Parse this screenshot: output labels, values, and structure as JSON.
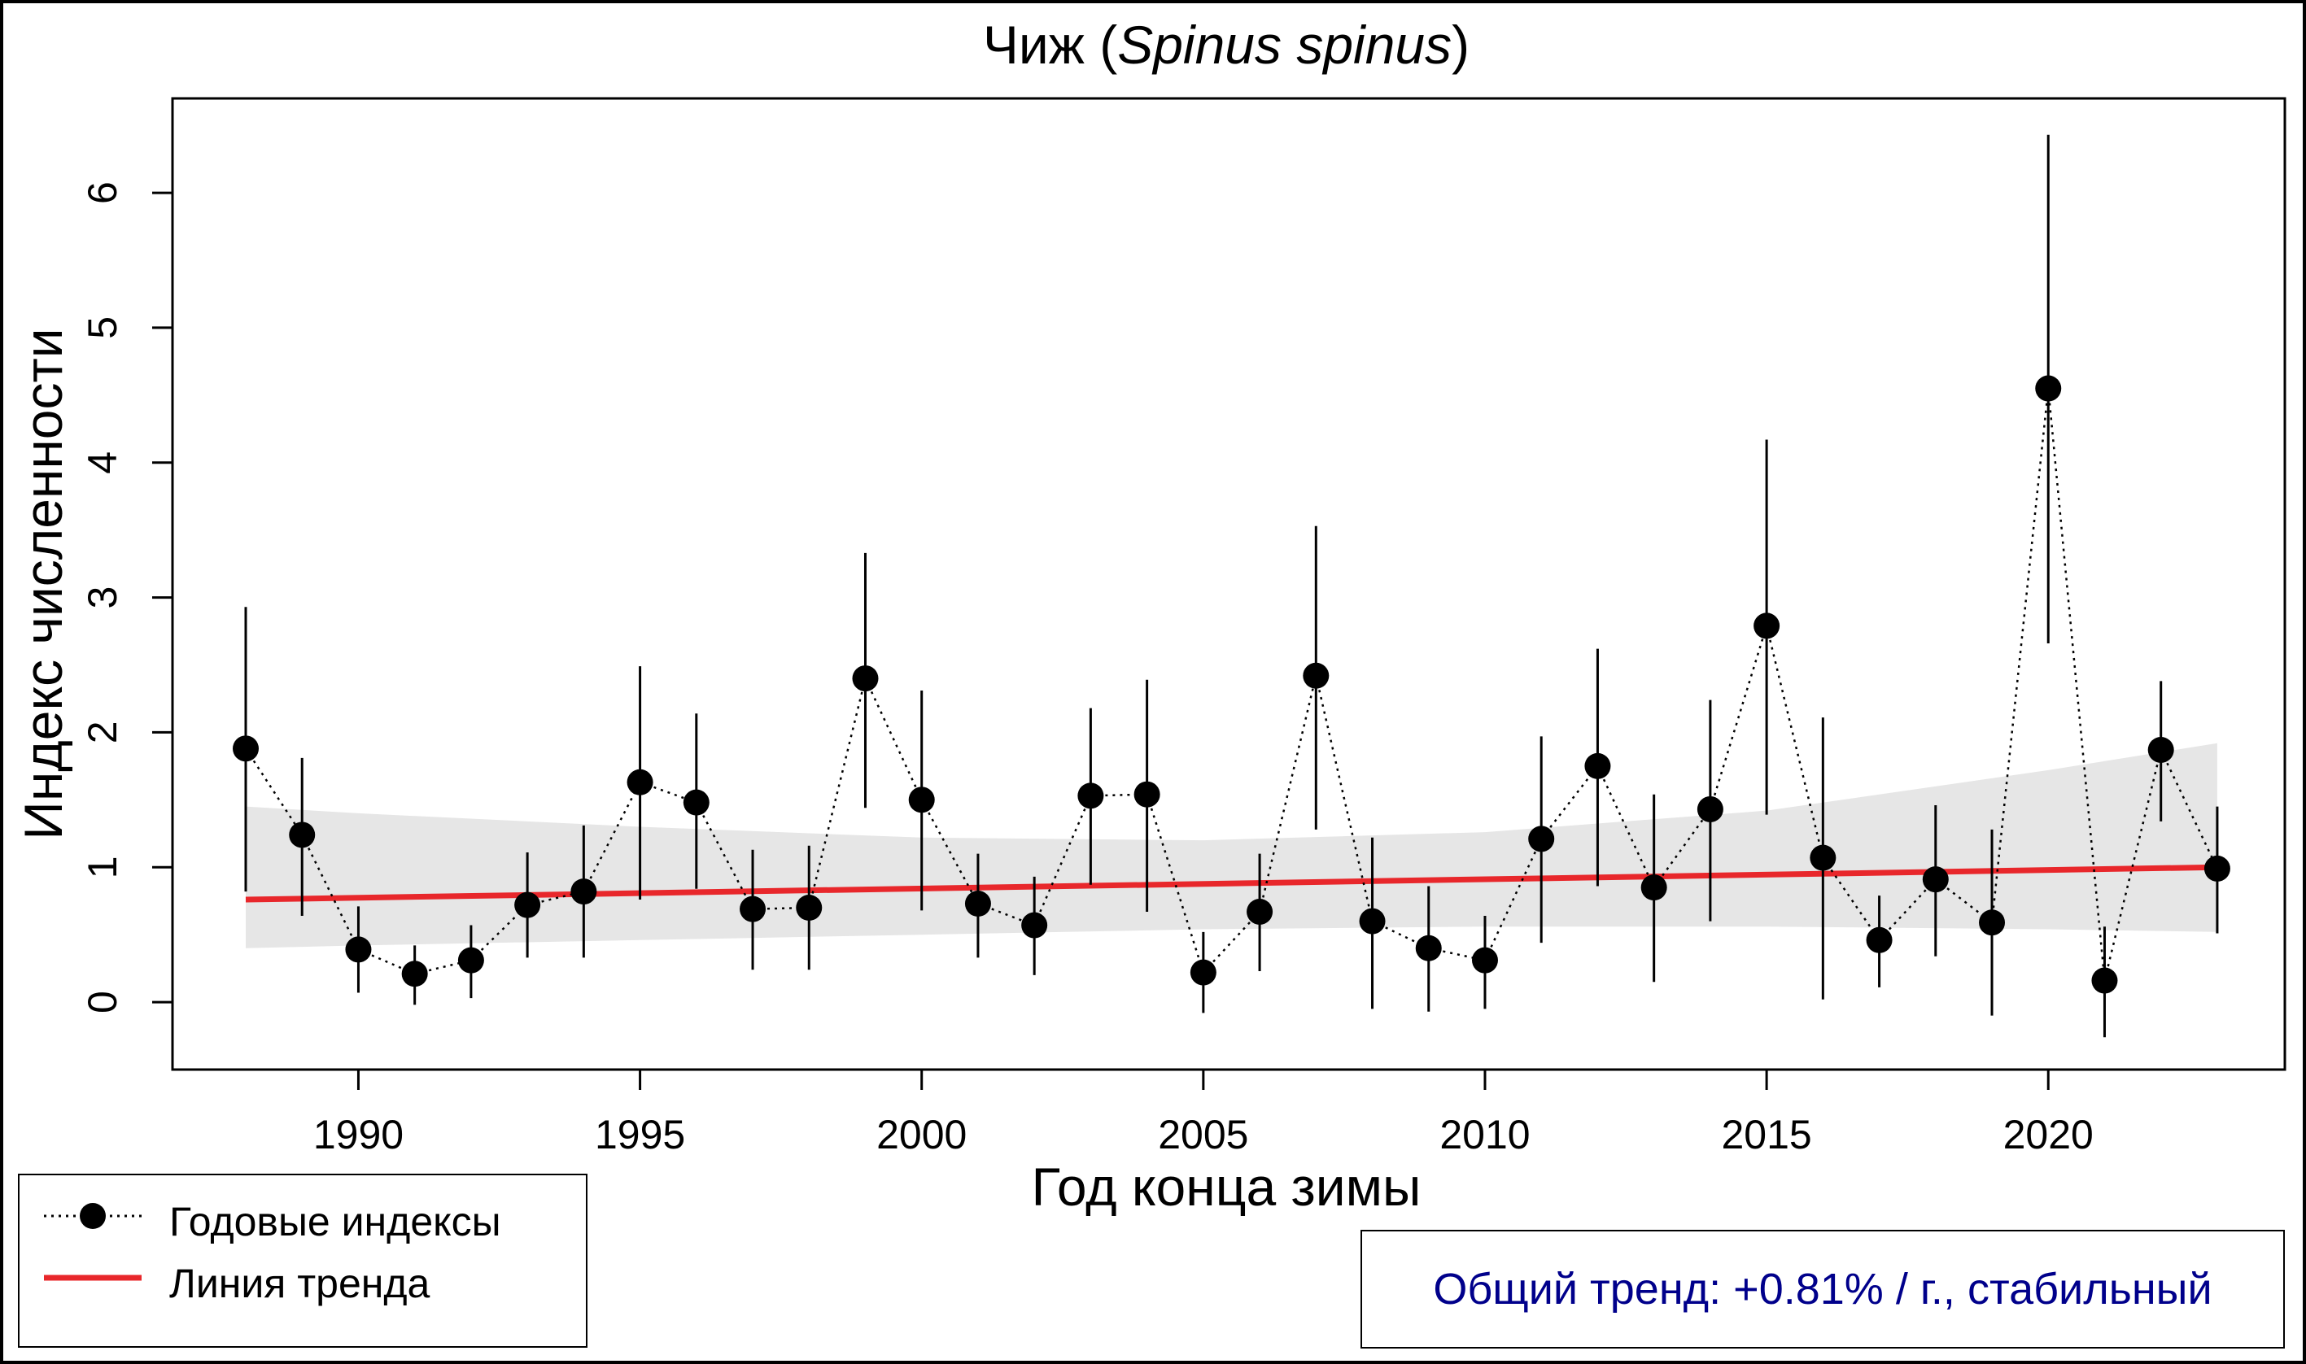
{
  "chart_data": {
    "type": "line",
    "title_main": "Чиж (",
    "title_italic": "Spinus spinus",
    "title_end": ")",
    "xlabel": "Год конца зимы",
    "ylabel": "Индекс численности",
    "xlim": [
      1986.7,
      2024.2
    ],
    "ylim": [
      -0.5,
      6.7
    ],
    "x_ticks": [
      1990,
      1995,
      2000,
      2005,
      2010,
      2015,
      2020
    ],
    "y_ticks": [
      0,
      1,
      2,
      3,
      4,
      5,
      6
    ],
    "series": [
      {
        "name": "Годовые индексы",
        "style": "dotted-line-with-points",
        "color": "#000000",
        "x": [
          1988,
          1989,
          1990,
          1991,
          1992,
          1993,
          1994,
          1995,
          1996,
          1997,
          1998,
          1999,
          2000,
          2001,
          2002,
          2003,
          2004,
          2005,
          2006,
          2007,
          2008,
          2009,
          2010,
          2011,
          2012,
          2013,
          2014,
          2015,
          2016,
          2017,
          2018,
          2019,
          2020,
          2021,
          2022,
          2023
        ],
        "y": [
          1.88,
          1.24,
          0.39,
          0.21,
          0.31,
          0.72,
          0.82,
          1.63,
          1.48,
          0.69,
          0.7,
          2.4,
          1.5,
          0.73,
          0.57,
          1.53,
          1.54,
          0.22,
          0.67,
          2.42,
          0.6,
          0.4,
          0.31,
          1.21,
          1.75,
          0.85,
          1.43,
          2.79,
          1.07,
          0.46,
          0.91,
          0.59,
          4.55,
          0.16,
          1.87,
          0.99
        ],
        "lower": [
          0.82,
          0.64,
          0.07,
          -0.02,
          0.03,
          0.33,
          0.33,
          0.76,
          0.84,
          0.24,
          0.24,
          1.44,
          0.68,
          0.33,
          0.2,
          0.87,
          0.67,
          -0.08,
          0.23,
          1.28,
          -0.05,
          -0.07,
          -0.05,
          0.44,
          0.86,
          0.15,
          0.6,
          1.39,
          0.02,
          0.11,
          0.34,
          -0.1,
          2.66,
          -0.26,
          1.34,
          0.51
        ],
        "upper": [
          2.93,
          1.81,
          0.71,
          0.42,
          0.57,
          1.11,
          1.31,
          2.49,
          2.14,
          1.13,
          1.16,
          3.33,
          2.31,
          1.1,
          0.93,
          2.18,
          2.39,
          0.52,
          1.1,
          3.53,
          1.22,
          0.86,
          0.64,
          1.97,
          2.62,
          1.54,
          2.24,
          4.17,
          2.11,
          0.79,
          1.46,
          1.28,
          6.43,
          0.56,
          2.38,
          1.45
        ]
      },
      {
        "name": "Линия тренда",
        "style": "solid",
        "color": "#E8272B",
        "x": [
          1988,
          2023
        ],
        "y": [
          0.76,
          1.0
        ]
      }
    ],
    "confidence_band": {
      "color": "#E6E6E6",
      "x": [
        1988,
        1990,
        1995,
        2000,
        2005,
        2010,
        2015,
        2020,
        2023
      ],
      "lower": [
        0.4,
        0.42,
        0.46,
        0.5,
        0.54,
        0.56,
        0.56,
        0.54,
        0.52
      ],
      "upper": [
        1.45,
        1.4,
        1.3,
        1.22,
        1.2,
        1.26,
        1.42,
        1.72,
        1.92
      ]
    }
  },
  "legend": {
    "items": [
      {
        "label": "Годовые индексы"
      },
      {
        "label": "Линия тренда"
      }
    ]
  },
  "trend_summary": "Общий тренд: +0.81% / г., стабильный"
}
